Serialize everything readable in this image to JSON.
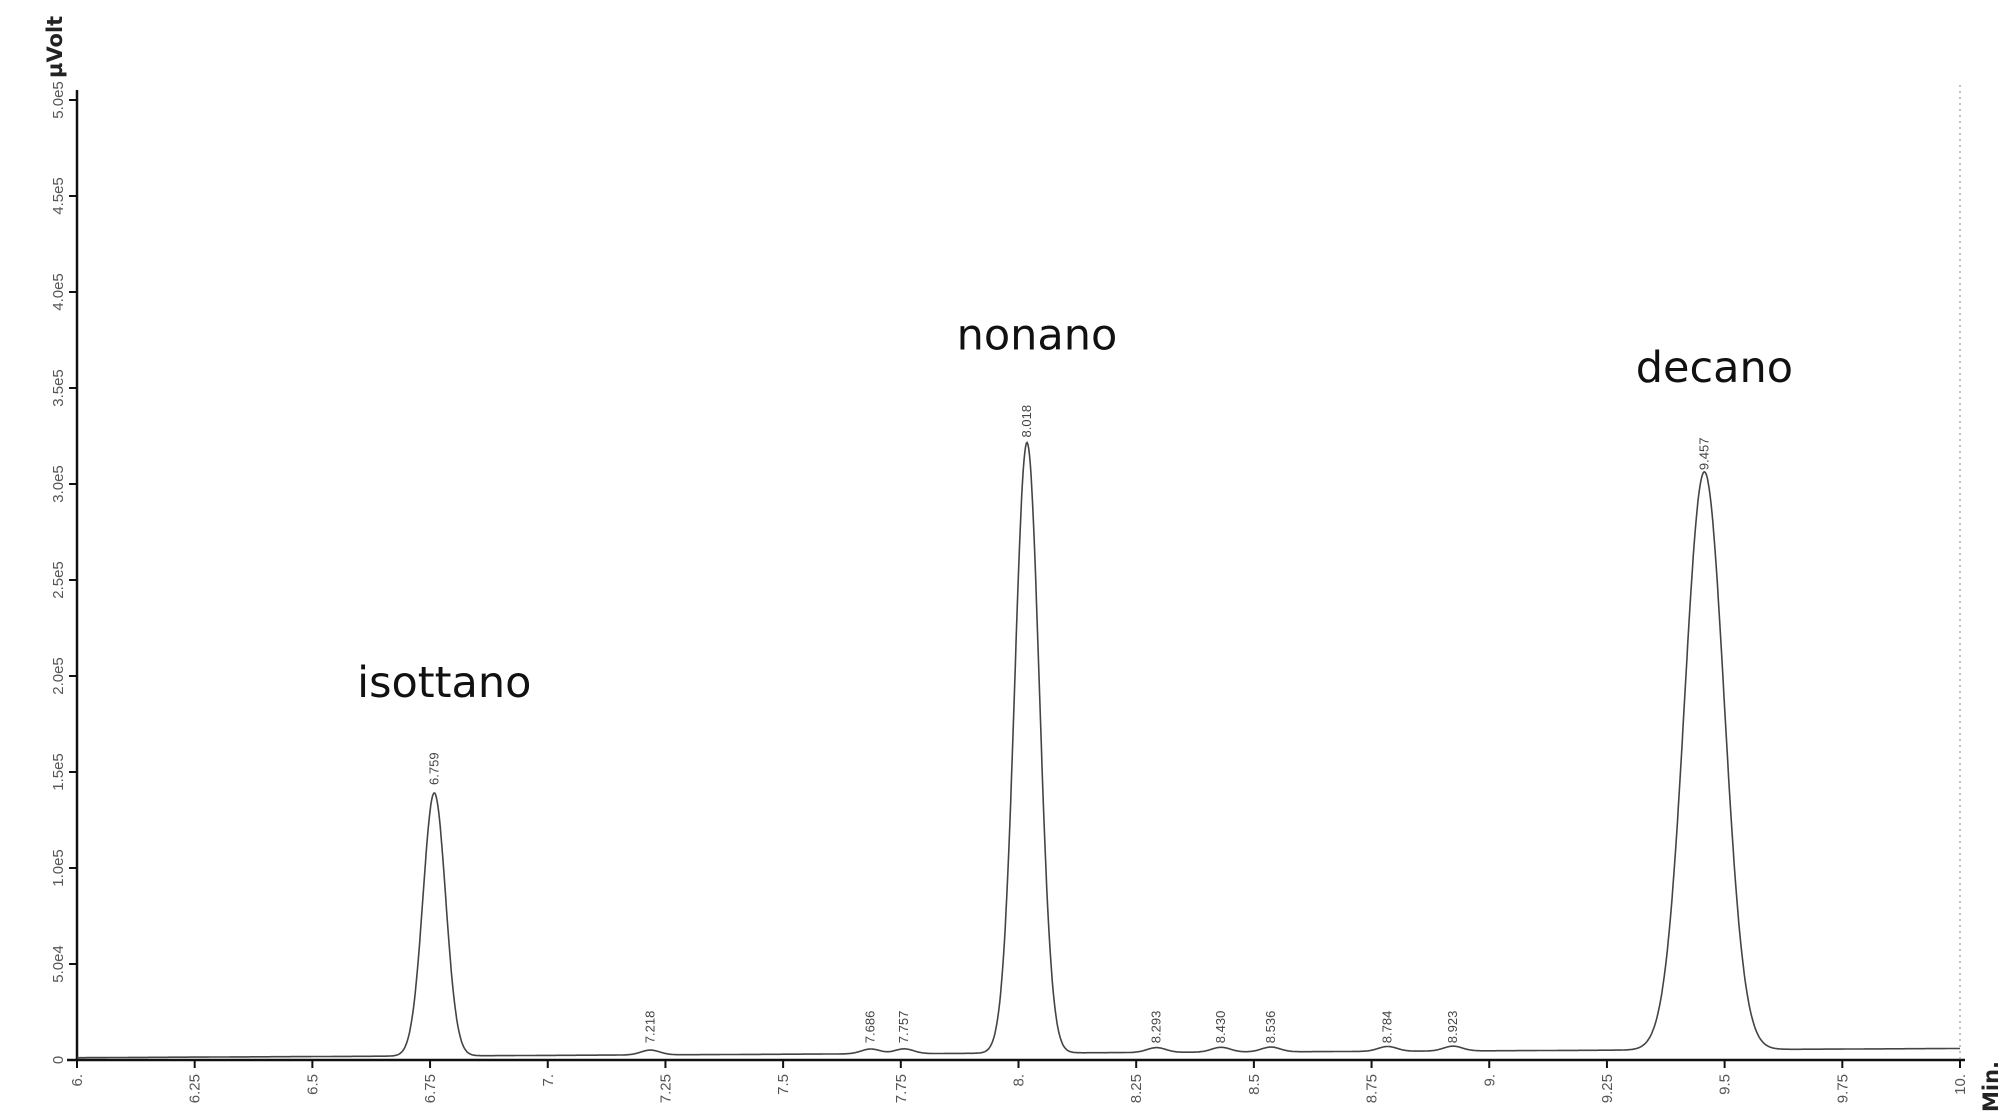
{
  "chart_data": {
    "type": "line",
    "title": "",
    "xlabel": "Min.",
    "ylabel": "µVolt",
    "xlim": [
      6,
      10
    ],
    "ylim": [
      0,
      500000
    ],
    "x_ticks": [
      "6.",
      "6.25",
      "6.5",
      "6.75",
      "7.",
      "7.25",
      "7.5",
      "7.75",
      "8.",
      "8.25",
      "8.5",
      "8.75",
      "9.",
      "9.25",
      "9.5",
      "9.75",
      "10."
    ],
    "x_tick_values": [
      6,
      6.25,
      6.5,
      6.75,
      7,
      7.25,
      7.5,
      7.75,
      8,
      8.25,
      8.5,
      8.75,
      9,
      9.25,
      9.5,
      9.75,
      10
    ],
    "y_ticks": [
      "0",
      "5.0e4",
      "1.0e5",
      "1.5e5",
      "2.0e5",
      "2.5e5",
      "3.0e5",
      "3.5e5",
      "4.0e5",
      "4.5e5",
      "5.0e5"
    ],
    "y_tick_values": [
      0,
      50000,
      100000,
      150000,
      200000,
      250000,
      300000,
      350000,
      400000,
      450000,
      500000
    ],
    "peaks": [
      {
        "rt": 6.759,
        "label": "6.759",
        "height": 137000,
        "sigma": 0.024
      },
      {
        "rt": 7.218,
        "label": "7.218",
        "height": 2500,
        "sigma": 0.02
      },
      {
        "rt": 7.686,
        "label": "7.686",
        "height": 2500,
        "sigma": 0.02
      },
      {
        "rt": 7.757,
        "label": "7.757",
        "height": 2500,
        "sigma": 0.02
      },
      {
        "rt": 8.018,
        "label": "8.018",
        "height": 318000,
        "sigma": 0.026
      },
      {
        "rt": 8.293,
        "label": "8.293",
        "height": 2500,
        "sigma": 0.02
      },
      {
        "rt": 8.43,
        "label": "8.430",
        "height": 2500,
        "sigma": 0.02
      },
      {
        "rt": 8.536,
        "label": "8.536",
        "height": 2500,
        "sigma": 0.02
      },
      {
        "rt": 8.784,
        "label": "8.784",
        "height": 2500,
        "sigma": 0.02
      },
      {
        "rt": 8.923,
        "label": "8.923",
        "height": 2500,
        "sigma": 0.02
      },
      {
        "rt": 9.457,
        "label": "9.457",
        "height": 301000,
        "sigma": 0.042
      }
    ],
    "annotations": [
      {
        "text": "isottano",
        "rt": 6.759
      },
      {
        "text": "nonano",
        "rt": 8.018
      },
      {
        "text": "decano",
        "rt": 9.457
      }
    ],
    "grid": false,
    "colors": {
      "trace": "#444444",
      "axis": "#111111",
      "text": "#111111"
    }
  }
}
